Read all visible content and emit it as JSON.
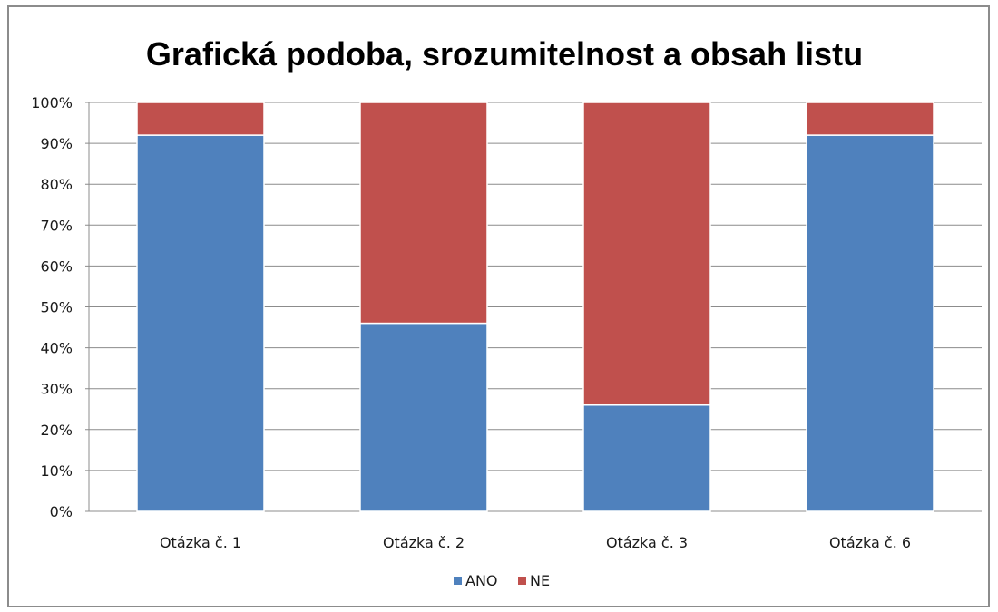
{
  "chart_data": {
    "type": "bar",
    "stacked": true,
    "title": "Grafická podoba, srozumitelnost a obsah listu",
    "categories": [
      "Otázka č. 1",
      "Otázka č. 2",
      "Otázka č. 3",
      "Otázka č. 6"
    ],
    "series": [
      {
        "name": "ANO",
        "values": [
          92,
          46,
          26,
          92
        ],
        "color": "#4f81bd"
      },
      {
        "name": "NE",
        "values": [
          8,
          54,
          74,
          8
        ],
        "color": "#c0504d"
      }
    ],
    "ylim": [
      0,
      100
    ],
    "yticks": [
      "0%",
      "10%",
      "20%",
      "30%",
      "40%",
      "50%",
      "60%",
      "70%",
      "80%",
      "90%",
      "100%"
    ],
    "grid": true,
    "legend_position": "bottom"
  }
}
